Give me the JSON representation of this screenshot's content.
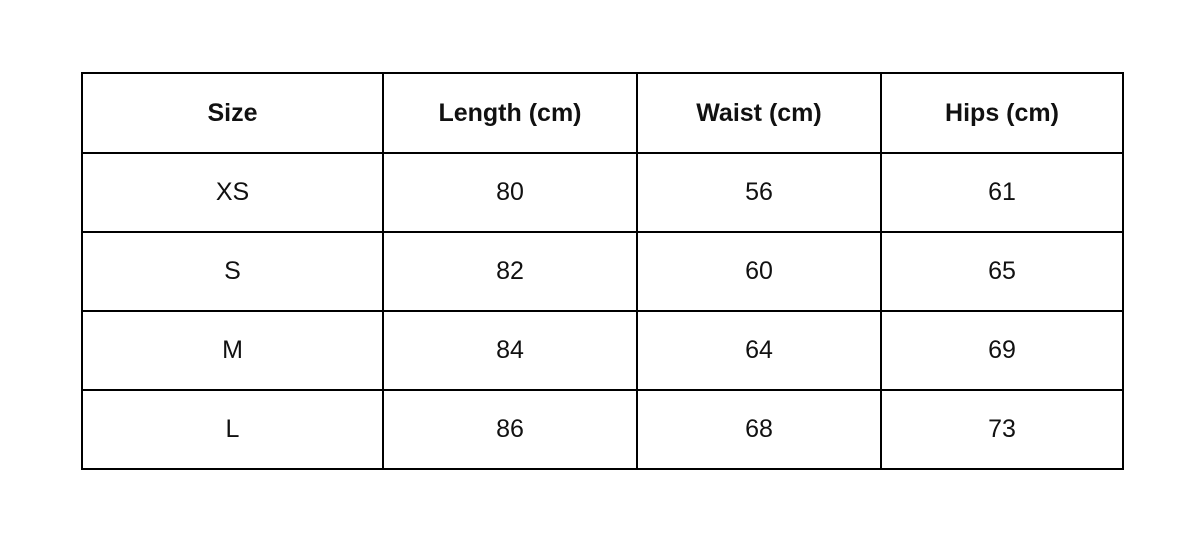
{
  "table": {
    "header": [
      "Size",
      "Length (cm)",
      "Waist (cm)",
      "Hips (cm)"
    ],
    "rows": [
      [
        "XS",
        "80",
        "56",
        "61"
      ],
      [
        "S",
        "82",
        "60",
        "65"
      ],
      [
        "M",
        "84",
        "64",
        "69"
      ],
      [
        "L",
        "86",
        "68",
        "73"
      ]
    ]
  }
}
